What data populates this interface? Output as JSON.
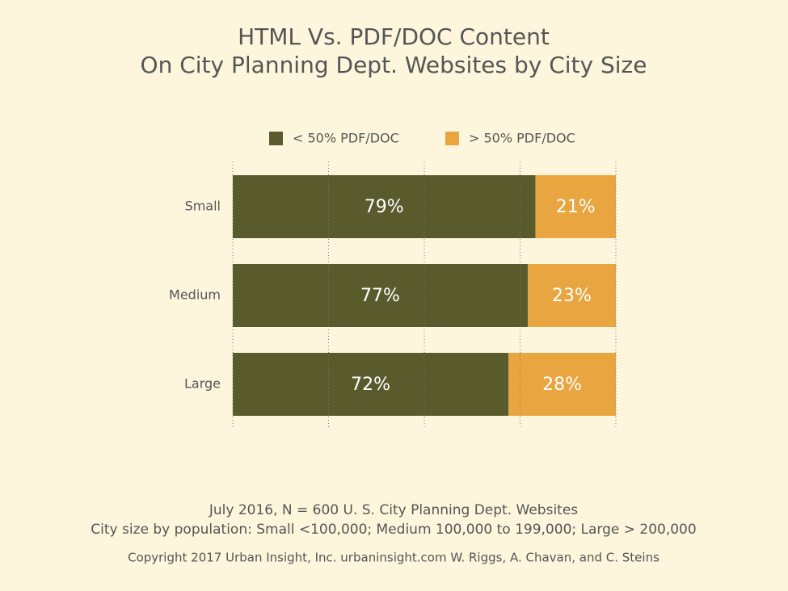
{
  "chart_data": {
    "type": "stacked-barh",
    "title": [
      "HTML Vs. PDF/DOC Content",
      "On City Planning Dept. Websites by City Size"
    ],
    "categories": [
      "Small",
      "Medium",
      "Large"
    ],
    "series": [
      {
        "name": "< 50% PDF/DOC",
        "color": "#5a5b2d",
        "values": [
          79,
          77,
          72
        ],
        "value_labels": [
          "79%",
          "77%",
          "72%"
        ]
      },
      {
        "name": "> 50% PDF/DOC",
        "color": "#e8a540",
        "values": [
          21,
          23,
          28
        ],
        "value_labels": [
          "21%",
          "23%",
          "28%"
        ]
      }
    ],
    "xlim": [
      0,
      100
    ],
    "xticks": [
      0,
      25,
      50,
      75,
      100
    ],
    "grid": true,
    "legend": "top",
    "notes": [
      "July 2016, N = 600 U. S. City Planning Dept. Websites",
      "City size by population:  Small <100,000; Medium 100,000 to 199,000; Large > 200,000",
      "Copyright 2017 Urban Insight, Inc. urbaninsight.com  W. Riggs, A. Chavan, and C. Steins"
    ]
  }
}
